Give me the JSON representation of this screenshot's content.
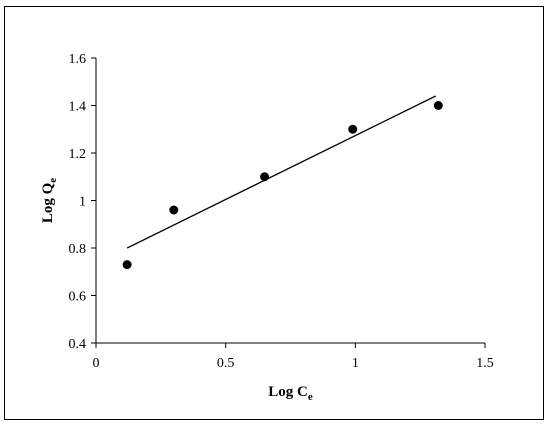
{
  "chart_data": {
    "type": "scatter",
    "title": "",
    "xlabel": {
      "base": "Log C",
      "sub": "e"
    },
    "ylabel": {
      "base": "Log Q",
      "sub": "e"
    },
    "xlim": [
      0,
      1.5
    ],
    "ylim": [
      0.4,
      1.6
    ],
    "xticks": [
      0,
      0.5,
      1,
      1.5
    ],
    "yticks": [
      0.4,
      0.6,
      0.8,
      1.0,
      1.2,
      1.4,
      1.6
    ],
    "xtick_labels": [
      "0",
      "0.5",
      "1",
      "1.5"
    ],
    "ytick_labels": [
      "0.4",
      "0.6",
      "0.8",
      "1",
      "1.2",
      "1.4",
      "1.6"
    ],
    "grid": false,
    "legend": "none",
    "series": [
      {
        "x": [
          0.12,
          0.3,
          0.65,
          0.99,
          1.32
        ],
        "y": [
          0.73,
          0.96,
          1.1,
          1.3,
          1.4
        ],
        "marker": "circle",
        "color": "#000000"
      }
    ],
    "trendline": {
      "type": "linear",
      "x": [
        0.12,
        1.31
      ],
      "y": [
        0.8,
        1.44
      ],
      "color": "#000000"
    }
  }
}
